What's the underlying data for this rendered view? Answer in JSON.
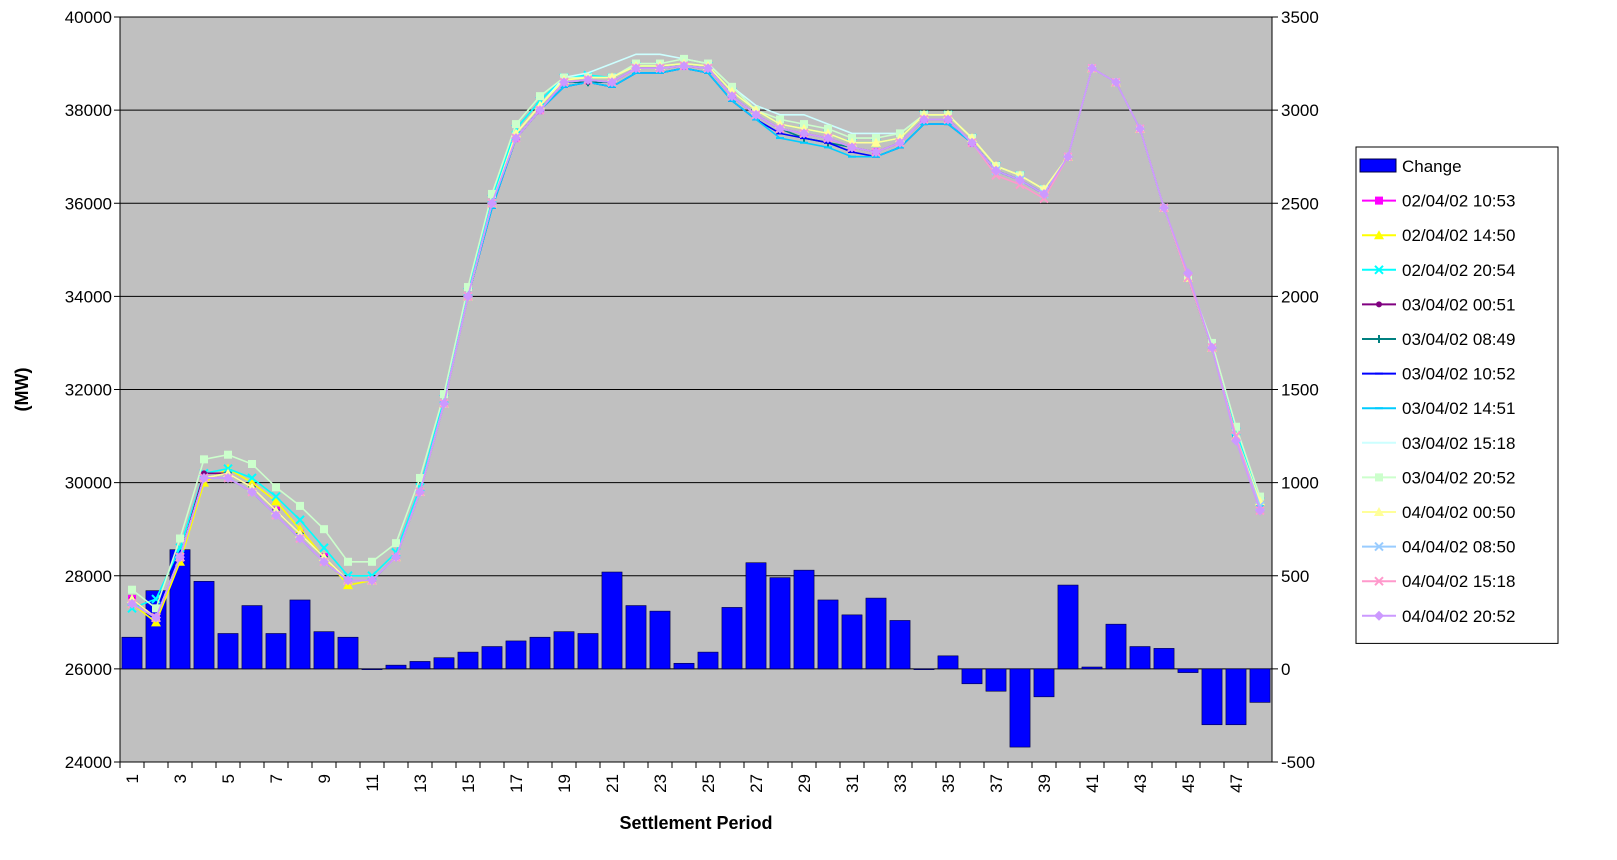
{
  "chart_data": {
    "type": "bar+line",
    "xlabel": "Settlement Period",
    "ylabel_left": "(MW)",
    "y_left_range": [
      24000,
      40000
    ],
    "y_left_ticks": [
      24000,
      26000,
      28000,
      30000,
      32000,
      34000,
      36000,
      38000,
      40000
    ],
    "y_right_range": [
      -500,
      3500
    ],
    "y_right_ticks": [
      -500,
      0,
      500,
      1000,
      1500,
      2000,
      2500,
      3000,
      3500
    ],
    "x_categories": [
      1,
      2,
      3,
      4,
      5,
      6,
      7,
      8,
      9,
      10,
      11,
      12,
      13,
      14,
      15,
      16,
      17,
      18,
      19,
      20,
      21,
      22,
      23,
      24,
      25,
      26,
      27,
      28,
      29,
      30,
      31,
      32,
      33,
      34,
      35,
      36,
      37,
      38,
      39,
      40,
      41,
      42,
      43,
      44,
      45,
      46,
      47,
      48
    ],
    "x_tick_labels": [
      "1",
      "3",
      "5",
      "7",
      "9",
      "11",
      "13",
      "15",
      "17",
      "19",
      "21",
      "23",
      "25",
      "27",
      "29",
      "31",
      "33",
      "35",
      "37",
      "39",
      "41",
      "43",
      "45",
      "47"
    ],
    "grid": "horizontal",
    "legend_placement": "right",
    "bar_series": {
      "name": "Change",
      "axis": "right",
      "color": "#0000ff",
      "values": [
        170,
        420,
        640,
        470,
        190,
        340,
        190,
        370,
        200,
        170,
        0,
        20,
        40,
        60,
        90,
        120,
        150,
        170,
        200,
        190,
        520,
        340,
        310,
        30,
        90,
        330,
        570,
        490,
        530,
        370,
        290,
        380,
        260,
        0,
        70,
        -80,
        -120,
        -420,
        -150,
        450,
        10,
        240,
        120,
        110,
        -20,
        -300,
        -300,
        -180
      ]
    },
    "line_series": [
      {
        "name": "02/04/02 10:53",
        "color": "#ff00ff",
        "marker": "square",
        "values": [
          27500,
          27100,
          28400,
          30100,
          30200,
          29900,
          29400,
          28900,
          28400,
          27900,
          27900,
          28400,
          29800,
          31700,
          34000,
          36000,
          37400,
          38000,
          38600,
          38650,
          38600,
          38900,
          38900,
          38950,
          38900,
          38300,
          37900,
          37600,
          37500,
          37400,
          37200,
          37100,
          37300,
          37800,
          37800,
          37300,
          36700,
          36500,
          36200,
          37000,
          38900,
          38600,
          37600,
          35900,
          34400,
          32900,
          31000,
          29500
        ]
      },
      {
        "name": "02/04/02 14:50",
        "color": "#ffff00",
        "marker": "triangle",
        "values": [
          27400,
          27000,
          28300,
          30000,
          30300,
          30000,
          29600,
          29000,
          28400,
          27800,
          27900,
          28400,
          29800,
          31700,
          34000,
          36000,
          37500,
          38100,
          38650,
          38700,
          38700,
          38950,
          38950,
          39000,
          38950,
          38400,
          38000,
          37700,
          37600,
          37500,
          37300,
          37300,
          37400,
          37900,
          37900,
          37400,
          36800,
          36600,
          36300,
          37000,
          38900,
          38600,
          37600,
          35900,
          34400,
          32900,
          31000,
          29600
        ]
      },
      {
        "name": "02/04/02 20:54",
        "color": "#00ffff",
        "marker": "x",
        "values": [
          27300,
          27500,
          28600,
          30200,
          30300,
          30100,
          29700,
          29200,
          28600,
          28000,
          28000,
          28500,
          29900,
          31800,
          34100,
          36100,
          37600,
          38200,
          38700,
          38750,
          38700,
          38950,
          38950,
          39000,
          38950,
          38400,
          38000,
          37700,
          37600,
          37500,
          37300,
          37300,
          37400,
          37900,
          37900,
          37400,
          36800,
          36600,
          36300,
          37000,
          38900,
          38600,
          37600,
          35900,
          34400,
          32900,
          31100,
          29600
        ]
      },
      {
        "name": "03/04/02 00:51",
        "color": "#800080",
        "marker": "circle",
        "values": [
          27500,
          27100,
          28400,
          30200,
          30200,
          29900,
          29400,
          28900,
          28400,
          27900,
          27900,
          28400,
          29800,
          31700,
          34000,
          36000,
          37400,
          38000,
          38600,
          38600,
          38600,
          38900,
          38900,
          38950,
          38900,
          38300,
          37900,
          37600,
          37500,
          37400,
          37200,
          37100,
          37300,
          37800,
          37800,
          37300,
          36700,
          36500,
          36200,
          37000,
          38900,
          38600,
          37600,
          35900,
          34400,
          32900,
          31000,
          29500
        ]
      },
      {
        "name": "03/04/02 08:49",
        "color": "#008080",
        "marker": "plus",
        "values": [
          27400,
          27100,
          28400,
          30100,
          30200,
          29900,
          29400,
          28900,
          28400,
          27900,
          27900,
          28400,
          29800,
          31700,
          34000,
          36000,
          37400,
          38000,
          38600,
          38600,
          38600,
          38900,
          38900,
          38950,
          38900,
          38300,
          37900,
          37600,
          37400,
          37300,
          37200,
          37100,
          37300,
          37800,
          37800,
          37300,
          36700,
          36500,
          36200,
          37000,
          38900,
          38600,
          37600,
          35900,
          34400,
          32900,
          31000,
          29500
        ]
      },
      {
        "name": "03/04/02 10:52",
        "color": "#0000ff",
        "marker": "dash",
        "values": [
          27400,
          27100,
          28400,
          30100,
          30100,
          29800,
          29300,
          28800,
          28300,
          27900,
          27900,
          28400,
          29800,
          31700,
          34000,
          35900,
          37400,
          38000,
          38500,
          38600,
          38500,
          38800,
          38800,
          38900,
          38800,
          38200,
          37800,
          37500,
          37400,
          37300,
          37100,
          37000,
          37200,
          37700,
          37700,
          37300,
          36700,
          36500,
          36200,
          37000,
          38900,
          38600,
          37600,
          35900,
          34400,
          32900,
          31000,
          29500
        ]
      },
      {
        "name": "03/04/02 14:51",
        "color": "#00ccff",
        "marker": "dash",
        "values": [
          27400,
          27100,
          28400,
          30100,
          30100,
          29800,
          29300,
          28800,
          28300,
          27900,
          27900,
          28400,
          29800,
          31700,
          34000,
          35900,
          37400,
          38000,
          38500,
          38600,
          38500,
          38800,
          38800,
          38900,
          38800,
          38200,
          37800,
          37400,
          37300,
          37200,
          37000,
          37000,
          37200,
          37700,
          37700,
          37300,
          36700,
          36500,
          36200,
          37000,
          38900,
          38600,
          37600,
          35900,
          34400,
          32900,
          31000,
          29500
        ]
      },
      {
        "name": "03/04/02 15:18",
        "color": "#ccffff",
        "marker": "none",
        "values": [
          27400,
          27100,
          28400,
          30100,
          30200,
          29900,
          29400,
          28900,
          28400,
          27900,
          27900,
          28400,
          29800,
          31700,
          34000,
          36000,
          37500,
          38100,
          38700,
          38800,
          39000,
          39200,
          39200,
          39100,
          39000,
          38500,
          38100,
          37900,
          37900,
          37700,
          37500,
          37500,
          37500,
          37900,
          37900,
          37400,
          36800,
          36600,
          36300,
          37000,
          38900,
          38600,
          37600,
          35900,
          34400,
          32900,
          31000,
          29500
        ]
      },
      {
        "name": "03/04/02 20:52",
        "color": "#ccffcc",
        "marker": "square",
        "values": [
          27700,
          27300,
          28800,
          30500,
          30600,
          30400,
          29900,
          29500,
          29000,
          28300,
          28300,
          28700,
          30100,
          31900,
          34200,
          36200,
          37700,
          38300,
          38700,
          38700,
          38700,
          39000,
          39000,
          39100,
          39000,
          38500,
          38000,
          37800,
          37700,
          37600,
          37400,
          37400,
          37500,
          37900,
          37900,
          37400,
          36800,
          36600,
          36300,
          37000,
          38900,
          38600,
          37600,
          35900,
          34400,
          33000,
          31200,
          29700
        ]
      },
      {
        "name": "04/04/02 00:50",
        "color": "#ffff99",
        "marker": "triangle",
        "values": [
          27500,
          27100,
          28400,
          30100,
          30200,
          29900,
          29400,
          28900,
          28400,
          27900,
          27900,
          28400,
          29800,
          31700,
          34000,
          36000,
          37500,
          38100,
          38650,
          38700,
          38700,
          38950,
          38950,
          39000,
          38950,
          38400,
          38000,
          37700,
          37600,
          37500,
          37300,
          37300,
          37400,
          37900,
          37900,
          37400,
          36800,
          36600,
          36300,
          37000,
          38900,
          38600,
          37600,
          35900,
          34400,
          32900,
          31000,
          29600
        ]
      },
      {
        "name": "04/04/02 08:50",
        "color": "#99ccff",
        "marker": "x",
        "values": [
          27400,
          27100,
          28400,
          30100,
          30100,
          29800,
          29300,
          28800,
          28300,
          27900,
          27900,
          28400,
          29800,
          31700,
          34000,
          36000,
          37400,
          38000,
          38600,
          38650,
          38600,
          38900,
          38900,
          38950,
          38900,
          38300,
          37900,
          37600,
          37500,
          37400,
          37200,
          37100,
          37300,
          37800,
          37800,
          37300,
          36700,
          36500,
          36200,
          37000,
          38900,
          38600,
          37600,
          35900,
          34400,
          32900,
          31000,
          29500
        ]
      },
      {
        "name": "04/04/02 15:18",
        "color": "#ff99cc",
        "marker": "x",
        "values": [
          27400,
          27100,
          28400,
          30100,
          30100,
          29800,
          29300,
          28800,
          28300,
          27900,
          27900,
          28400,
          29800,
          31700,
          34000,
          36000,
          37400,
          38000,
          38600,
          38650,
          38600,
          38900,
          38900,
          38950,
          38900,
          38300,
          37900,
          37600,
          37500,
          37400,
          37200,
          37100,
          37300,
          37800,
          37800,
          37300,
          36600,
          36400,
          36100,
          37000,
          38900,
          38600,
          37600,
          35900,
          34400,
          32900,
          31000,
          29400
        ]
      },
      {
        "name": "04/04/02 20:52",
        "color": "#cc99ff",
        "marker": "diamond",
        "values": [
          27400,
          27100,
          28400,
          30100,
          30100,
          29800,
          29300,
          28800,
          28300,
          27900,
          27900,
          28400,
          29800,
          31700,
          34000,
          36000,
          37400,
          38000,
          38600,
          38650,
          38600,
          38900,
          38900,
          38950,
          38900,
          38300,
          37900,
          37600,
          37500,
          37400,
          37200,
          37100,
          37300,
          37800,
          37800,
          37300,
          36700,
          36500,
          36200,
          37000,
          38900,
          38600,
          37600,
          35900,
          34500,
          32900,
          30900,
          29400
        ]
      }
    ]
  }
}
